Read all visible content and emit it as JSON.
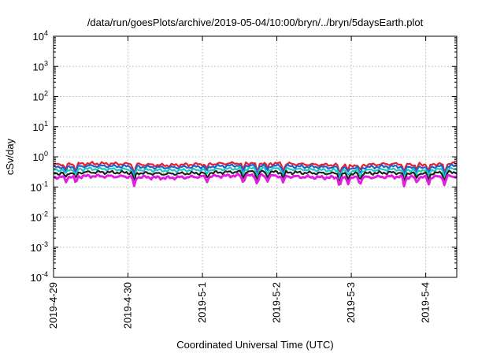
{
  "chart_data": {
    "type": "line",
    "title": "/data/run/goesPlots/archive/2019-05-04/10:00/bryn/../bryn/5daysEarth.plot",
    "xlabel": "Coordinated Universal Time (UTC)",
    "ylabel": "cSv/day",
    "yscale": "log",
    "ylim": [
      0.0001,
      10000
    ],
    "y_ticks": [
      {
        "value": 0.0001,
        "base": "10",
        "exp": "-4"
      },
      {
        "value": 0.001,
        "base": "10",
        "exp": "-3"
      },
      {
        "value": 0.01,
        "base": "10",
        "exp": "-2"
      },
      {
        "value": 0.1,
        "base": "10",
        "exp": "-1"
      },
      {
        "value": 1,
        "base": "10",
        "exp": "0"
      },
      {
        "value": 10,
        "base": "10",
        "exp": "1"
      },
      {
        "value": 100,
        "base": "10",
        "exp": "2"
      },
      {
        "value": 1000,
        "base": "10",
        "exp": "3"
      },
      {
        "value": 10000,
        "base": "10",
        "exp": "4"
      }
    ],
    "xlim": [
      "2019-04-29 00:00",
      "2019-05-04 10:00"
    ],
    "x_ticks": [
      "2019-4-29",
      "2019-4-30",
      "2019-5-1",
      "2019-5-2",
      "2019-5-3",
      "2019-5-4"
    ],
    "grid": true,
    "x": [
      "2019-04-29 00:00",
      "2019-04-29 12:00",
      "2019-04-30 00:00",
      "2019-04-30 12:00",
      "2019-05-01 00:00",
      "2019-05-01 12:00",
      "2019-05-02 00:00",
      "2019-05-02 12:00",
      "2019-05-03 00:00",
      "2019-05-03 12:00",
      "2019-05-04 00:00",
      "2019-05-04 10:00"
    ],
    "series": [
      {
        "color": "#e8202a",
        "values": [
          0.55,
          0.6,
          0.58,
          0.52,
          0.57,
          0.62,
          0.6,
          0.55,
          0.52,
          0.58,
          0.56,
          0.6
        ]
      },
      {
        "color": "#2060d0",
        "values": [
          0.45,
          0.5,
          0.48,
          0.44,
          0.47,
          0.52,
          0.5,
          0.46,
          0.43,
          0.48,
          0.46,
          0.5
        ]
      },
      {
        "color": "#20c8c0",
        "values": [
          0.36,
          0.4,
          0.38,
          0.35,
          0.37,
          0.41,
          0.4,
          0.37,
          0.34,
          0.38,
          0.36,
          0.4
        ]
      },
      {
        "color": "#202020",
        "values": [
          0.28,
          0.31,
          0.3,
          0.27,
          0.29,
          0.32,
          0.31,
          0.29,
          0.27,
          0.3,
          0.28,
          0.31
        ]
      },
      {
        "color": "#e020e0",
        "values": [
          0.21,
          0.23,
          0.22,
          0.2,
          0.22,
          0.24,
          0.23,
          0.21,
          0.2,
          0.22,
          0.21,
          0.23
        ]
      }
    ]
  }
}
